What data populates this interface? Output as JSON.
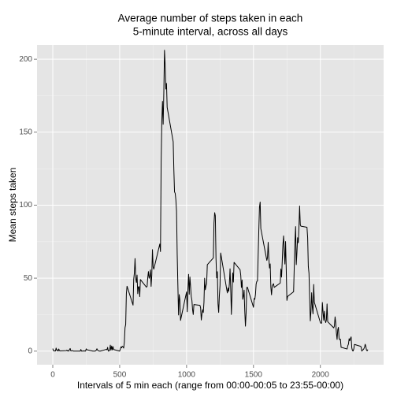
{
  "chart_data": {
    "type": "line",
    "title": [
      "Average number of steps taken in each",
      "5-minute interval, across all days"
    ],
    "x_label": "Intervals of 5 min each (range from 00:00-00:05 to 23:55-00:00)",
    "y_label": "Mean steps taken",
    "color": "#000000",
    "grid": true,
    "xlim": [
      -117.75,
      2472.75
    ],
    "ylim": [
      -9.3,
      209.8
    ],
    "xticks": [
      0,
      500,
      1000,
      1500,
      2000
    ],
    "yticks": [
      0,
      50,
      100,
      150,
      200
    ],
    "x_minor_ticks": [
      250,
      750,
      1250,
      1750,
      2250
    ],
    "y_minor_ticks": [
      25,
      75,
      125,
      175
    ],
    "x": [
      0,
      5,
      10,
      15,
      20,
      25,
      30,
      35,
      40,
      45,
      50,
      55,
      100,
      105,
      110,
      115,
      120,
      125,
      130,
      135,
      140,
      145,
      150,
      155,
      200,
      205,
      210,
      215,
      220,
      225,
      230,
      235,
      240,
      245,
      250,
      255,
      300,
      305,
      310,
      315,
      320,
      325,
      330,
      335,
      340,
      345,
      350,
      355,
      400,
      405,
      410,
      415,
      420,
      425,
      430,
      435,
      440,
      445,
      450,
      455,
      500,
      505,
      510,
      515,
      520,
      525,
      530,
      535,
      540,
      545,
      550,
      555,
      600,
      605,
      610,
      615,
      620,
      625,
      630,
      635,
      640,
      645,
      650,
      655,
      700,
      705,
      710,
      715,
      720,
      725,
      730,
      735,
      740,
      745,
      750,
      755,
      800,
      805,
      810,
      815,
      820,
      825,
      830,
      835,
      840,
      845,
      850,
      855,
      900,
      905,
      910,
      915,
      920,
      925,
      930,
      935,
      940,
      945,
      950,
      955,
      1000,
      1005,
      1010,
      1015,
      1020,
      1025,
      1030,
      1035,
      1040,
      1045,
      1050,
      1055,
      1100,
      1105,
      1110,
      1115,
      1120,
      1125,
      1130,
      1135,
      1140,
      1145,
      1150,
      1155,
      1200,
      1205,
      1210,
      1215,
      1220,
      1225,
      1230,
      1235,
      1240,
      1245,
      1250,
      1255,
      1300,
      1305,
      1310,
      1315,
      1320,
      1325,
      1330,
      1335,
      1340,
      1345,
      1350,
      1355,
      1400,
      1405,
      1410,
      1415,
      1420,
      1425,
      1430,
      1435,
      1440,
      1445,
      1450,
      1455,
      1500,
      1505,
      1510,
      1515,
      1520,
      1525,
      1530,
      1535,
      1540,
      1545,
      1550,
      1555,
      1600,
      1605,
      1610,
      1615,
      1620,
      1625,
      1630,
      1635,
      1640,
      1645,
      1650,
      1655,
      1700,
      1705,
      1710,
      1715,
      1720,
      1725,
      1730,
      1735,
      1740,
      1745,
      1750,
      1755,
      1800,
      1805,
      1810,
      1815,
      1820,
      1825,
      1830,
      1835,
      1840,
      1845,
      1850,
      1855,
      1900,
      1905,
      1910,
      1915,
      1920,
      1925,
      1930,
      1935,
      1940,
      1945,
      1950,
      1955,
      2000,
      2005,
      2010,
      2015,
      2020,
      2025,
      2030,
      2035,
      2040,
      2045,
      2050,
      2055,
      2100,
      2105,
      2110,
      2115,
      2120,
      2125,
      2130,
      2135,
      2140,
      2145,
      2150,
      2155,
      2200,
      2205,
      2210,
      2215,
      2220,
      2225,
      2230,
      2235,
      2240,
      2245,
      2250,
      2255,
      2300,
      2305,
      2310,
      2315,
      2320,
      2325,
      2330,
      2335,
      2340,
      2345,
      2350,
      2355
    ],
    "values": [
      1.72,
      0.34,
      0.13,
      0.15,
      0.08,
      2.09,
      0.53,
      0.87,
      0,
      1.47,
      0.3,
      0.13,
      0.32,
      0.68,
      0.15,
      0.34,
      0,
      1.11,
      1.83,
      0.17,
      0.17,
      0.38,
      0.26,
      0,
      0,
      0,
      1.13,
      0,
      0,
      0.13,
      0,
      0.23,
      0,
      0,
      1.55,
      0.94,
      0,
      0,
      0,
      0,
      0.21,
      0.62,
      1.62,
      0.58,
      0.49,
      0.08,
      0,
      0,
      1.19,
      0.94,
      2.57,
      0,
      0.34,
      0.36,
      4.11,
      0.66,
      3.49,
      0.83,
      3.11,
      1.11,
      0,
      1.57,
      3,
      2.25,
      3.32,
      2.96,
      2.09,
      6.06,
      16.02,
      18.34,
      39.45,
      44.49,
      31.49,
      49.26,
      53.77,
      63.45,
      49.96,
      47.08,
      52.15,
      39.34,
      44.02,
      44.17,
      37.36,
      49.04,
      43.81,
      44.38,
      50.51,
      54.51,
      49.92,
      50.98,
      55.68,
      44.32,
      52.26,
      69.55,
      57.85,
      56.15,
      73.38,
      68.21,
      129.43,
      157.53,
      171.15,
      155.4,
      177.3,
      206.17,
      195.92,
      179.57,
      183.4,
      167.02,
      143.45,
      124.04,
      109.11,
      108.11,
      103.72,
      95.97,
      66.21,
      45.23,
      24.79,
      38.75,
      34.98,
      21.06,
      40.57,
      26.98,
      42.42,
      52.66,
      38.92,
      50.79,
      44.28,
      37.42,
      34.7,
      28.34,
      25.09,
      31.94,
      31.36,
      29.68,
      21.32,
      25.55,
      28.38,
      26.47,
      33.43,
      49.98,
      42.04,
      44.6,
      46.04,
      59.19,
      63.87,
      87.7,
      94.85,
      92.77,
      63.4,
      50.17,
      54.47,
      32.42,
      26.53,
      37.74,
      45.06,
      67.28,
      42.34,
      39.88,
      43.26,
      40.98,
      46.25,
      56.43,
      42.75,
      25.13,
      39.96,
      53.55,
      47.32,
      60.81,
      55.75,
      51.96,
      43.58,
      48.7,
      35.47,
      37.55,
      41.85,
      27.51,
      17.11,
      26.08,
      43.62,
      43.77,
      30.02,
      36.08,
      35.49,
      38.85,
      45.96,
      47.75,
      48.13,
      65.32,
      82.91,
      98.66,
      102.11,
      83.96,
      62.13,
      64.13,
      74.55,
      63.17,
      56.91,
      59.77,
      43.87,
      38.57,
      44.66,
      45.45,
      46.21,
      43.68,
      46.62,
      56.3,
      50.72,
      61.23,
      72.72,
      78.94,
      68.94,
      59.66,
      75.09,
      56.51,
      34.77,
      37.45,
      40.68,
      58.02,
      74.7,
      85.32,
      59.26,
      67.77,
      77.7,
      74.25,
      85.34,
      99.45,
      86.58,
      85.6,
      84.87,
      77.83,
      58.04,
      53.36,
      36.32,
      20.72,
      27.4,
      40.02,
      30.21,
      25.55,
      45.66,
      33.53,
      19.62,
      19.02,
      19.34,
      33.34,
      26.81,
      21.17,
      27.3,
      21.34,
      19.55,
      21.32,
      32.3,
      20.15,
      15.94,
      17.23,
      23.45,
      19.25,
      12.45,
      8.02,
      14.66,
      16.3,
      8.68,
      7.79,
      8.13,
      2.62,
      1.45,
      3.68,
      4.81,
      8.51,
      7.08,
      8.7,
      9.75,
      2.21,
      0.32,
      0.11,
      1.6,
      4.6,
      3.3,
      2.85,
      0,
      0.83,
      0.96,
      1.58,
      2.6,
      4.7,
      3.3,
      0.64,
      0.23,
      1.08
    ]
  }
}
